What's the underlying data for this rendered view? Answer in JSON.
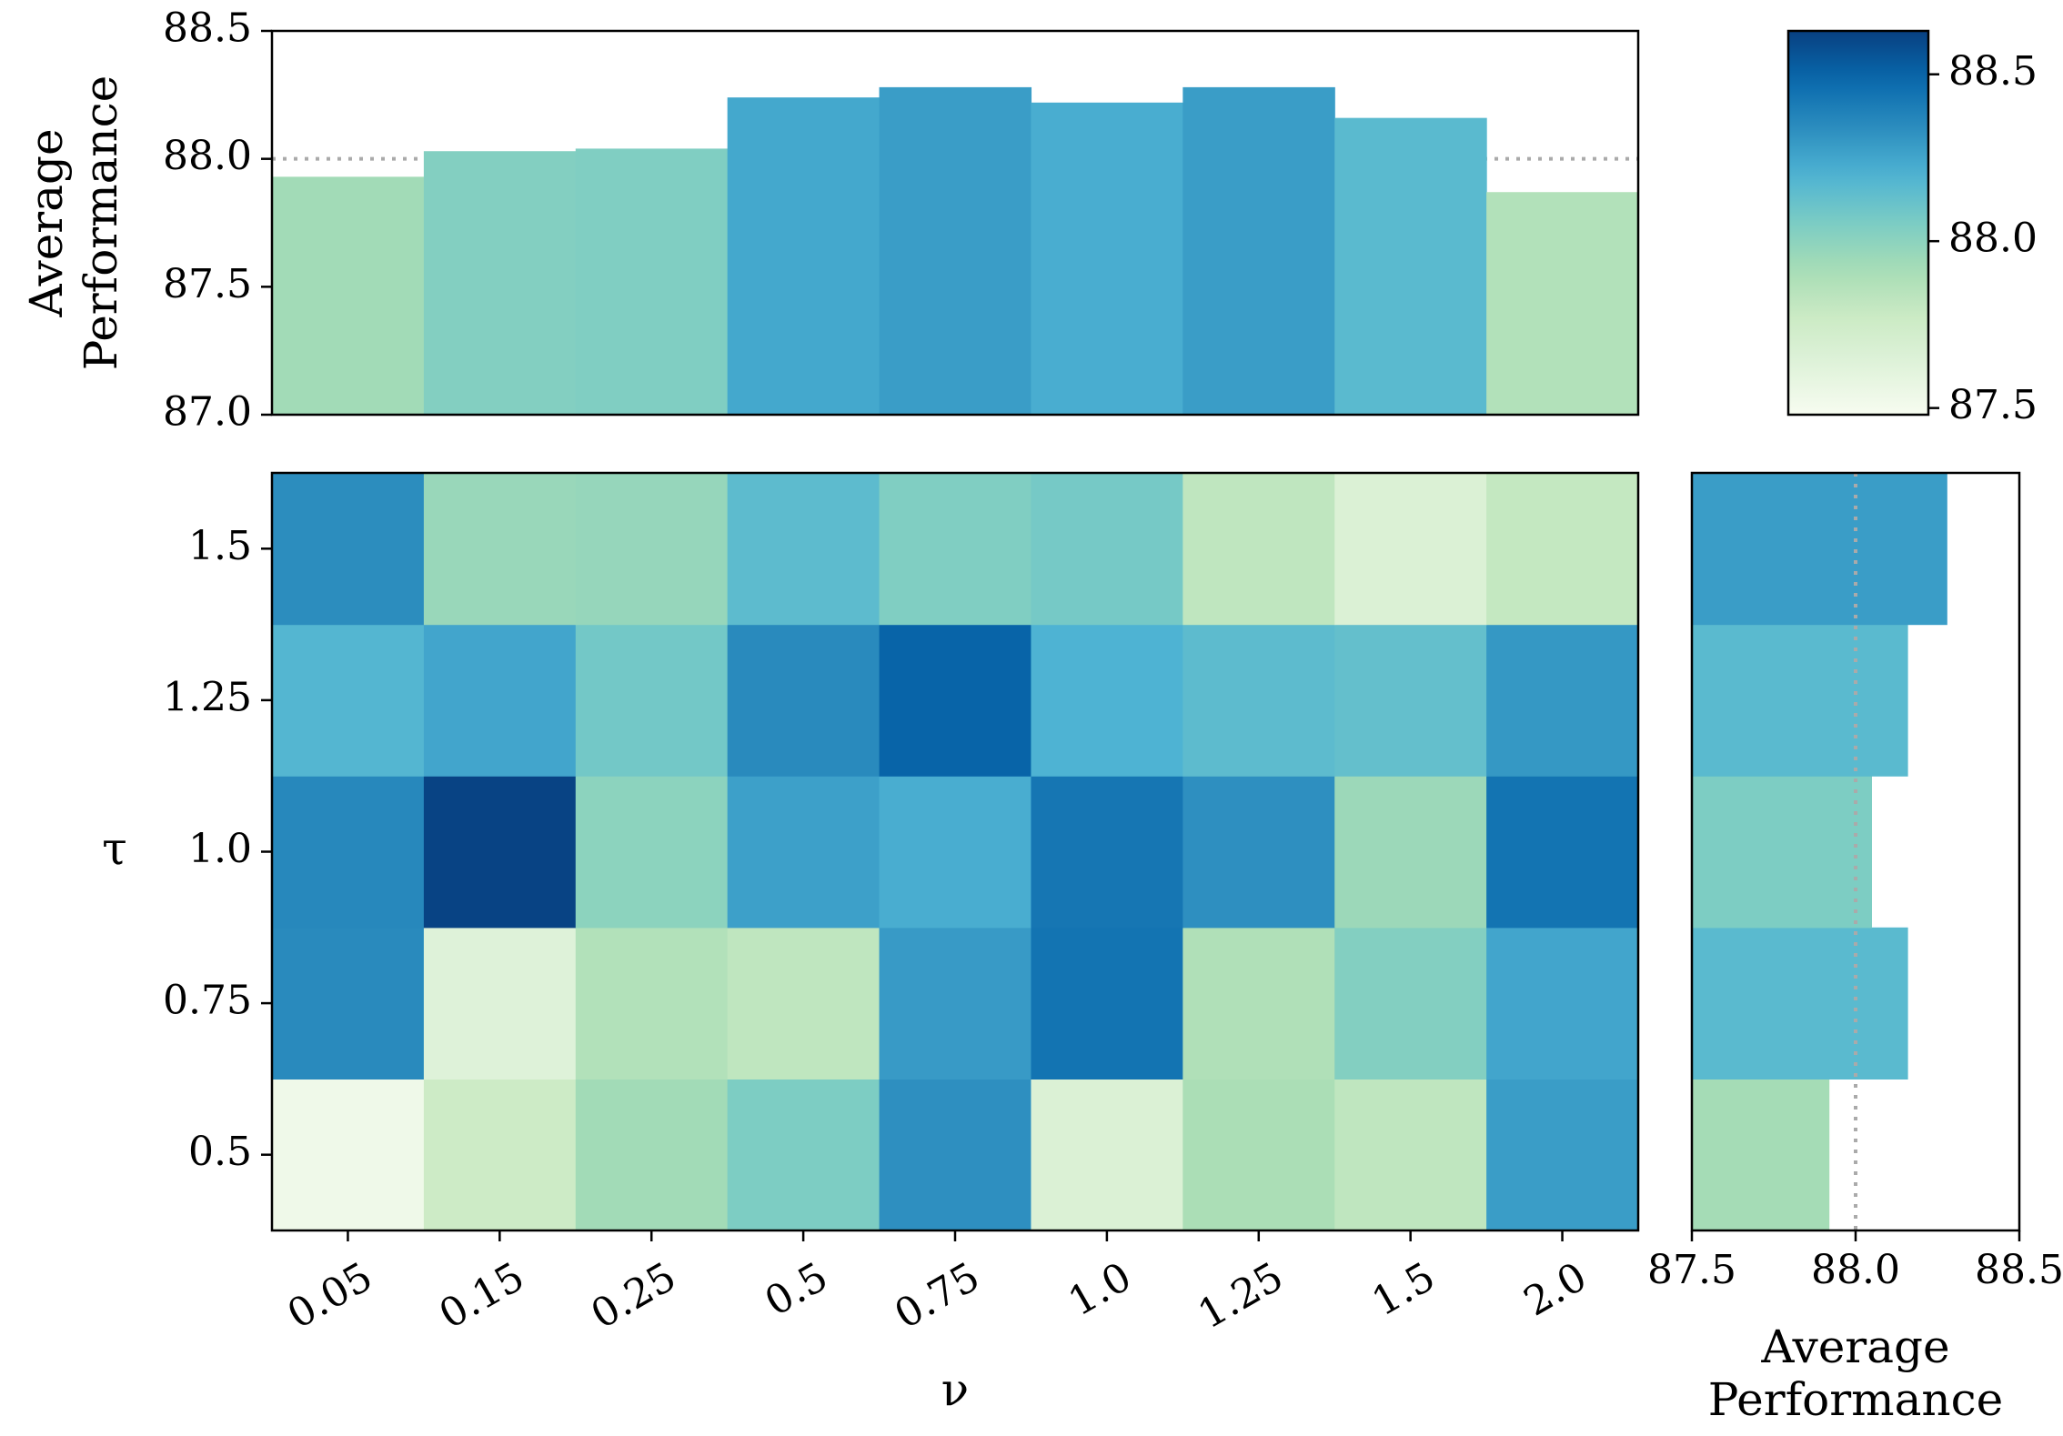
{
  "chart_data": {
    "type": "heatmap",
    "x_labels": [
      "0.05",
      "0.15",
      "0.25",
      "0.5",
      "0.75",
      "1.0",
      "1.25",
      "1.5",
      "2.0"
    ],
    "y_labels": [
      "0.5",
      "0.75",
      "1.0",
      "1.25",
      "1.5"
    ],
    "xlabel": "ν",
    "ylabel": "τ",
    "heatmap_values": [
      [
        87.53,
        87.76,
        87.93,
        88.05,
        88.33,
        87.66,
        87.9,
        87.82,
        88.28
      ],
      [
        88.35,
        87.64,
        87.87,
        87.82,
        88.29,
        88.44,
        87.88,
        88.03,
        88.25
      ],
      [
        88.36,
        88.62,
        88.0,
        88.27,
        88.22,
        88.43,
        88.33,
        87.95,
        88.44
      ],
      [
        88.18,
        88.25,
        88.08,
        88.35,
        88.5,
        88.2,
        88.15,
        88.13,
        88.3
      ],
      [
        88.34,
        87.96,
        87.97,
        88.15,
        88.04,
        88.07,
        87.82,
        87.66,
        87.8
      ]
    ],
    "column_average": {
      "ylabel": "Average Performance",
      "values": [
        87.93,
        88.03,
        88.04,
        88.24,
        88.28,
        88.22,
        88.28,
        88.16,
        87.87
      ],
      "ylim": [
        87.0,
        88.5
      ],
      "yticks": [
        "87.0",
        "87.5",
        "88.0",
        "88.5"
      ],
      "reference_line": 88.0
    },
    "row_average": {
      "xlabel": "Average Performance",
      "values": [
        87.92,
        88.16,
        88.05,
        88.16,
        88.28
      ],
      "xlim": [
        87.5,
        88.5
      ],
      "xticks": [
        "87.5",
        "88.0",
        "88.5"
      ],
      "reference_line": 88.0
    },
    "colorbar": {
      "range": [
        87.48,
        88.63
      ],
      "ticks": [
        "87.5",
        "88.0",
        "88.5"
      ]
    },
    "colormap": "GnBu",
    "colors": {
      "ref_line": "#aaaaaa",
      "frame": "#000000"
    }
  }
}
